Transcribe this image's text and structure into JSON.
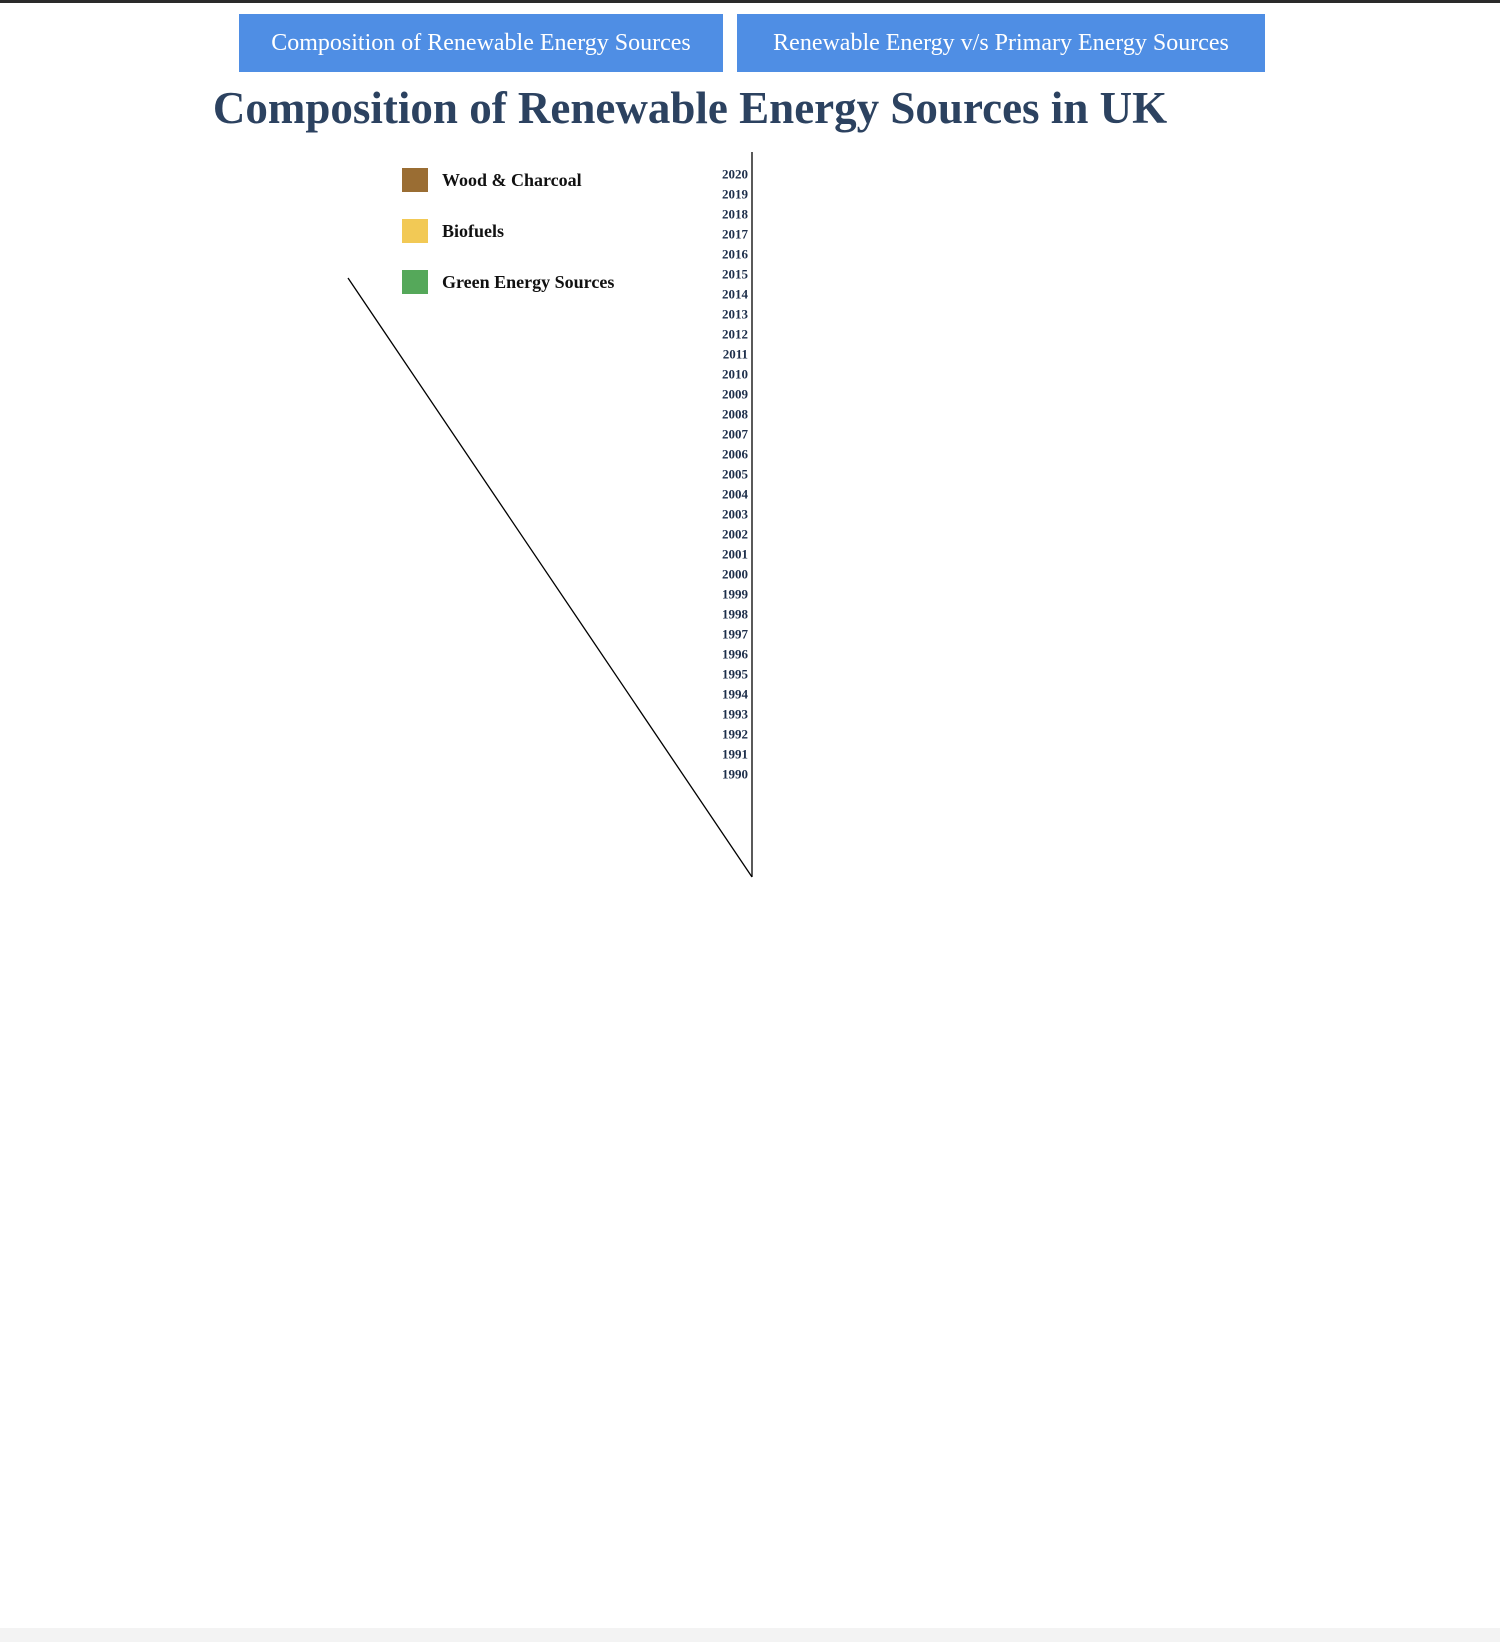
{
  "nav": {
    "tab_composition": "Composition of Renewable Energy Sources",
    "tab_vs_primary": "Renewable Energy v/s Primary Energy Sources"
  },
  "page_title": "Composition of Renewable Energy Sources in UK",
  "colors": {
    "wood": "#9a6d33",
    "biofuels": "#f2c955",
    "green": "#55a85a",
    "axis": "#000000",
    "year_label": "#1d2e4a"
  },
  "chart_data": {
    "type": "radial-stacked-bar",
    "title": "Composition of Renewable Energy Sources in UK",
    "unit": "degrees of arc",
    "total_degrees": 330,
    "legend_position": "top-left",
    "legend": [
      "Wood & Charcoal",
      "Biofuels",
      "Green Energy Sources"
    ],
    "categories": [
      "1990",
      "1991",
      "1992",
      "1993",
      "1994",
      "1995",
      "1996",
      "1997",
      "1998",
      "1999",
      "2000",
      "2001",
      "2002",
      "2003",
      "2004",
      "2005",
      "2006",
      "2007",
      "2008",
      "2009",
      "2010",
      "2011",
      "2012",
      "2013",
      "2014",
      "2015",
      "2016",
      "2017",
      "2018",
      "2019",
      "2020"
    ],
    "series": [
      {
        "name": "Wood & Charcoal",
        "values": [
          0,
          0,
          0,
          0,
          0,
          0,
          0,
          0,
          0,
          0,
          0,
          0,
          0,
          0,
          0,
          0,
          0,
          0,
          0,
          0,
          0,
          0,
          0,
          0,
          0,
          0,
          0,
          0,
          0,
          0,
          0
        ]
      },
      {
        "name": "Biofuels",
        "values": [
          0,
          0,
          0,
          0,
          0,
          0,
          0,
          0,
          0,
          0,
          0,
          0,
          0,
          0,
          0,
          0,
          0,
          0,
          0,
          0,
          0,
          0,
          0,
          0,
          0,
          0,
          0,
          0,
          0,
          0,
          0
        ]
      },
      {
        "name": "Green Energy Sources",
        "values": [
          0,
          0,
          0,
          0,
          0,
          0,
          0,
          0,
          0,
          0,
          0,
          0,
          0,
          0,
          0,
          0,
          0,
          0,
          0,
          0,
          0,
          0,
          0,
          0,
          0,
          0,
          0,
          0,
          0,
          0,
          0
        ]
      }
    ]
  }
}
